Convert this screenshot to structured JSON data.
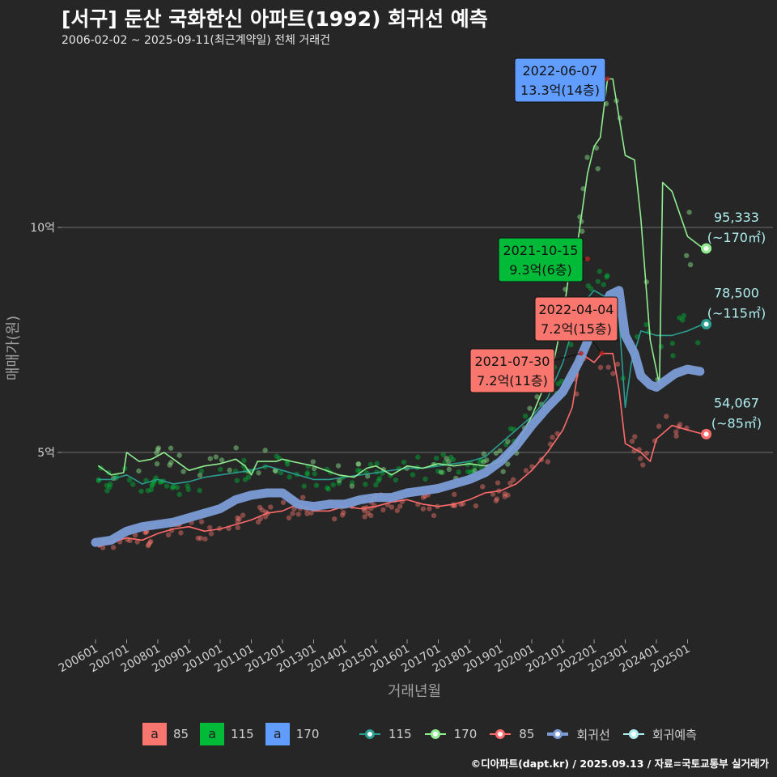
{
  "title": "[서구] 둔산 국화한신 아파트(1992) 회귀선 예측",
  "subtitle": "2006-02-02 ~ 2025-09-11(최근계약일) 전체 거래건",
  "caption": "©디아파트(dapt.kr) / 2025.09.13 / 자료=국토교통부 실거래가",
  "colors": {
    "s85": "#f8766d",
    "s115": "#00ba38",
    "s170": "#619cff",
    "line85": "#ff6b6b",
    "line115": "#2a9d8f",
    "line170": "#90ee90",
    "regression": "#7b9cd6",
    "forecast": "#aeeeee"
  },
  "legend": {
    "fill_items": [
      {
        "key": "a",
        "label": "85"
      },
      {
        "key": "a",
        "label": "115"
      },
      {
        "key": "a",
        "label": "170"
      }
    ],
    "line_items": [
      {
        "label": "115"
      },
      {
        "label": "170"
      },
      {
        "label": "85"
      },
      {
        "label": "회귀선"
      },
      {
        "label": "회귀예측"
      }
    ]
  },
  "chart_data": {
    "type": "line",
    "xlabel": "거래년월",
    "ylabel": "매매가(원)",
    "x_ticks": [
      "200601",
      "200701",
      "200801",
      "200901",
      "201001",
      "201101",
      "201201",
      "201301",
      "201401",
      "201501",
      "201601",
      "201701",
      "201801",
      "201901",
      "202001",
      "202101",
      "202201",
      "202301",
      "202401",
      "202501"
    ],
    "y_ticks": [
      {
        "value": 50000,
        "label": "5억"
      },
      {
        "value": 100000,
        "label": "10억"
      }
    ],
    "ylim": [
      15000,
      140000
    ],
    "xlim": [
      2005.6,
      2026.0
    ],
    "series": [
      {
        "name": "85",
        "color": "#ff6b6b",
        "points": [
          [
            2006.1,
            29000
          ],
          [
            2006.5,
            30000
          ],
          [
            2007.0,
            31000
          ],
          [
            2007.5,
            30500
          ],
          [
            2008.0,
            32000
          ],
          [
            2008.5,
            33000
          ],
          [
            2009.0,
            33500
          ],
          [
            2009.5,
            32500
          ],
          [
            2010.0,
            33000
          ],
          [
            2010.5,
            34000
          ],
          [
            2011.0,
            35000
          ],
          [
            2011.5,
            36500
          ],
          [
            2012.0,
            37000
          ],
          [
            2012.5,
            38500
          ],
          [
            2013.0,
            37000
          ],
          [
            2013.5,
            37000
          ],
          [
            2014.0,
            38000
          ],
          [
            2014.5,
            37500
          ],
          [
            2015.0,
            38000
          ],
          [
            2015.5,
            39000
          ],
          [
            2016.0,
            39500
          ],
          [
            2016.5,
            38500
          ],
          [
            2017.0,
            38000
          ],
          [
            2017.5,
            38500
          ],
          [
            2018.0,
            39500
          ],
          [
            2018.5,
            41000
          ],
          [
            2019.0,
            41500
          ],
          [
            2019.5,
            43000
          ],
          [
            2020.0,
            46000
          ],
          [
            2020.5,
            50000
          ],
          [
            2021.0,
            55000
          ],
          [
            2021.3,
            60000
          ],
          [
            2021.58,
            72000
          ],
          [
            2022.0,
            70000
          ],
          [
            2022.25,
            72000
          ],
          [
            2022.6,
            72000
          ],
          [
            2022.8,
            64000
          ],
          [
            2023.0,
            52000
          ],
          [
            2023.5,
            50000
          ],
          [
            2023.8,
            48000
          ],
          [
            2024.0,
            53000
          ],
          [
            2024.5,
            56000
          ],
          [
            2025.0,
            55000
          ],
          [
            2025.5,
            54067
          ]
        ]
      },
      {
        "name": "115",
        "color": "#2a9d8f",
        "points": [
          [
            2006.1,
            44000
          ],
          [
            2006.5,
            44000
          ],
          [
            2007.0,
            45000
          ],
          [
            2007.5,
            43000
          ],
          [
            2008.0,
            44000
          ],
          [
            2008.5,
            43000
          ],
          [
            2009.0,
            43500
          ],
          [
            2009.5,
            44500
          ],
          [
            2010.0,
            45000
          ],
          [
            2010.5,
            45500
          ],
          [
            2011.0,
            46000
          ],
          [
            2011.5,
            47000
          ],
          [
            2012.0,
            46000
          ],
          [
            2012.5,
            45000
          ],
          [
            2013.0,
            44000
          ],
          [
            2013.5,
            44000
          ],
          [
            2014.0,
            44500
          ],
          [
            2014.5,
            45000
          ],
          [
            2015.0,
            45500
          ],
          [
            2015.5,
            46000
          ],
          [
            2016.0,
            46500
          ],
          [
            2016.5,
            46500
          ],
          [
            2017.0,
            47000
          ],
          [
            2017.5,
            47500
          ],
          [
            2018.0,
            48000
          ],
          [
            2018.5,
            49000
          ],
          [
            2019.0,
            52000
          ],
          [
            2019.5,
            55000
          ],
          [
            2020.0,
            58000
          ],
          [
            2020.5,
            62000
          ],
          [
            2021.0,
            70000
          ],
          [
            2021.5,
            82000
          ],
          [
            2022.0,
            86000
          ],
          [
            2022.5,
            84000
          ],
          [
            2022.8,
            80000
          ],
          [
            2023.0,
            60000
          ],
          [
            2023.2,
            70000
          ],
          [
            2023.5,
            77000
          ],
          [
            2024.0,
            76000
          ],
          [
            2024.5,
            76000
          ],
          [
            2025.0,
            77000
          ],
          [
            2025.5,
            78500
          ]
        ]
      },
      {
        "name": "170",
        "color": "#90ee90",
        "points": [
          [
            2006.1,
            47000
          ],
          [
            2006.5,
            45000
          ],
          [
            2006.9,
            45500
          ],
          [
            2007.0,
            50000
          ],
          [
            2007.4,
            48000
          ],
          [
            2007.8,
            48500
          ],
          [
            2008.2,
            50000
          ],
          [
            2009.0,
            46000
          ],
          [
            2009.5,
            47000
          ],
          [
            2010.0,
            47500
          ],
          [
            2010.5,
            48500
          ],
          [
            2010.8,
            47000
          ],
          [
            2011.0,
            45000
          ],
          [
            2011.2,
            48000
          ],
          [
            2011.8,
            48000
          ],
          [
            2012.0,
            48500
          ],
          [
            2012.3,
            48000
          ],
          [
            2013.0,
            47000
          ],
          [
            2013.4,
            46000
          ],
          [
            2013.8,
            45000
          ],
          [
            2014.3,
            44500
          ],
          [
            2014.7,
            46500
          ],
          [
            2015.0,
            47000
          ],
          [
            2015.5,
            45000
          ],
          [
            2016.0,
            47000
          ],
          [
            2016.5,
            46500
          ],
          [
            2017.0,
            47500
          ],
          [
            2017.5,
            47000
          ],
          [
            2018.0,
            47500
          ],
          [
            2018.5,
            47000
          ],
          [
            2019.0,
            48000
          ],
          [
            2019.5,
            52000
          ],
          [
            2020.0,
            58000
          ],
          [
            2020.3,
            63000
          ],
          [
            2020.7,
            70000
          ],
          [
            2021.0,
            80000
          ],
          [
            2021.2,
            90000
          ],
          [
            2021.5,
            98000
          ],
          [
            2021.79,
            112000
          ],
          [
            2022.0,
            118000
          ],
          [
            2022.2,
            120000
          ],
          [
            2022.43,
            133000
          ],
          [
            2022.6,
            133000
          ],
          [
            2023.0,
            116000
          ],
          [
            2023.3,
            115000
          ],
          [
            2023.5,
            102000
          ],
          [
            2023.8,
            75000
          ],
          [
            2024.1,
            65000
          ],
          [
            2024.2,
            110000
          ],
          [
            2024.5,
            108000
          ],
          [
            2025.0,
            98000
          ],
          [
            2025.5,
            95333
          ]
        ]
      },
      {
        "name": "회귀선",
        "color": "#7b9cd6",
        "points": [
          [
            2006.0,
            30000
          ],
          [
            2006.5,
            30500
          ],
          [
            2007.0,
            32500
          ],
          [
            2007.5,
            33500
          ],
          [
            2008.0,
            34000
          ],
          [
            2008.5,
            34500
          ],
          [
            2009.0,
            35500
          ],
          [
            2009.5,
            36500
          ],
          [
            2010.0,
            37500
          ],
          [
            2010.5,
            39500
          ],
          [
            2011.0,
            40500
          ],
          [
            2011.5,
            41000
          ],
          [
            2012.0,
            41000
          ],
          [
            2012.5,
            38500
          ],
          [
            2013.0,
            38000
          ],
          [
            2013.5,
            38500
          ],
          [
            2014.0,
            38500
          ],
          [
            2014.5,
            39500
          ],
          [
            2015.0,
            40000
          ],
          [
            2015.5,
            40000
          ],
          [
            2016.0,
            41000
          ],
          [
            2016.5,
            41500
          ],
          [
            2017.0,
            42000
          ],
          [
            2017.5,
            43000
          ],
          [
            2018.0,
            44000
          ],
          [
            2018.5,
            45500
          ],
          [
            2019.0,
            48000
          ],
          [
            2019.5,
            51500
          ],
          [
            2020.0,
            56000
          ],
          [
            2020.5,
            60000
          ],
          [
            2021.0,
            63500
          ],
          [
            2021.5,
            70000
          ],
          [
            2022.0,
            78000
          ],
          [
            2022.5,
            85000
          ],
          [
            2022.8,
            86000
          ],
          [
            2023.0,
            76000
          ],
          [
            2023.3,
            72000
          ],
          [
            2023.5,
            67000
          ],
          [
            2023.8,
            65000
          ],
          [
            2024.0,
            64500
          ],
          [
            2024.3,
            66000
          ],
          [
            2024.6,
            67500
          ],
          [
            2025.0,
            68500
          ],
          [
            2025.4,
            68000
          ]
        ]
      }
    ],
    "endpoints": [
      {
        "series": "170",
        "x": 2025.6,
        "value": 95333,
        "label": "95,333",
        "area": "(~170㎡)"
      },
      {
        "series": "115",
        "x": 2025.6,
        "value": 78500,
        "label": "78,500",
        "area": "(~115㎡)"
      },
      {
        "series": "85",
        "x": 2025.6,
        "value": 54067,
        "label": "54,067",
        "area": "(~85㎡)"
      }
    ],
    "annotations": [
      {
        "date": "2022-06-07",
        "text": "13.3억(14층)",
        "x": 2022.43,
        "value": 133000,
        "color": "#619cff",
        "position": "above-left"
      },
      {
        "date": "2021-10-15",
        "text": "9.3억(6층)",
        "x": 2021.79,
        "value": 93000,
        "color": "#00ba38",
        "position": "left"
      },
      {
        "date": "2022-04-04",
        "text": "7.2억(15층)",
        "x": 2022.25,
        "value": 72000,
        "color": "#f8766d",
        "position": "above"
      },
      {
        "date": "2021-07-30",
        "text": "7.2억(11층)",
        "x": 2021.58,
        "value": 72000,
        "color": "#f8766d",
        "position": "below-left"
      }
    ]
  }
}
